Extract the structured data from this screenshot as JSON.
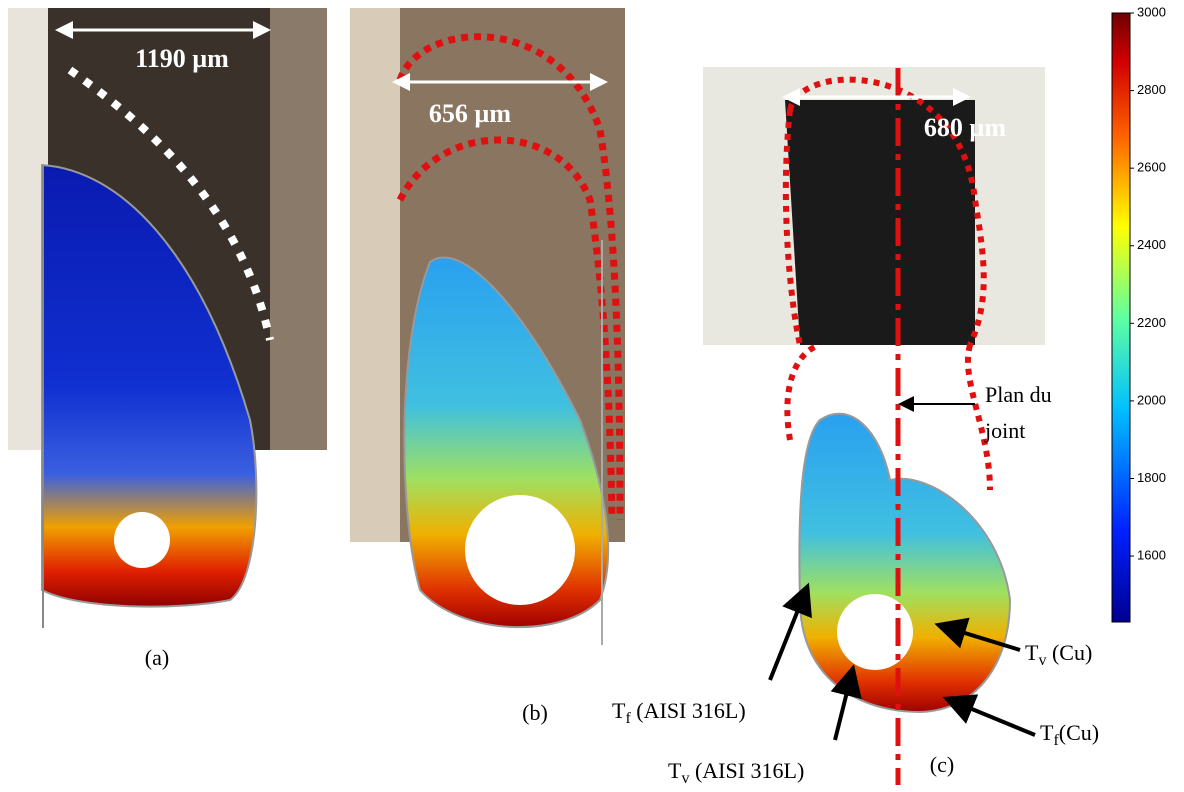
{
  "panels": [
    {
      "scale_label": "1190 µm",
      "caption": "(a)"
    },
    {
      "scale_label": "656 µm",
      "caption": "(b)"
    },
    {
      "scale_label": "680 µm",
      "caption": "(c)"
    }
  ],
  "joint_label": {
    "line1": "Plan du",
    "line2": "joint"
  },
  "annotations": [
    {
      "base": "T",
      "sub": "f",
      "rest": " (AISI 316L)"
    },
    {
      "base": "T",
      "sub": "v",
      "rest": " (AISI 316L)"
    },
    {
      "base": "T",
      "sub": "v",
      "rest": " (Cu)"
    },
    {
      "base": "T",
      "sub": "f",
      "rest": "(Cu)"
    }
  ],
  "colorbar": {
    "lim": [
      1430,
      3000
    ],
    "ticks": [
      1600,
      1800,
      2000,
      2200,
      2400,
      2600,
      2800,
      3000
    ]
  }
}
